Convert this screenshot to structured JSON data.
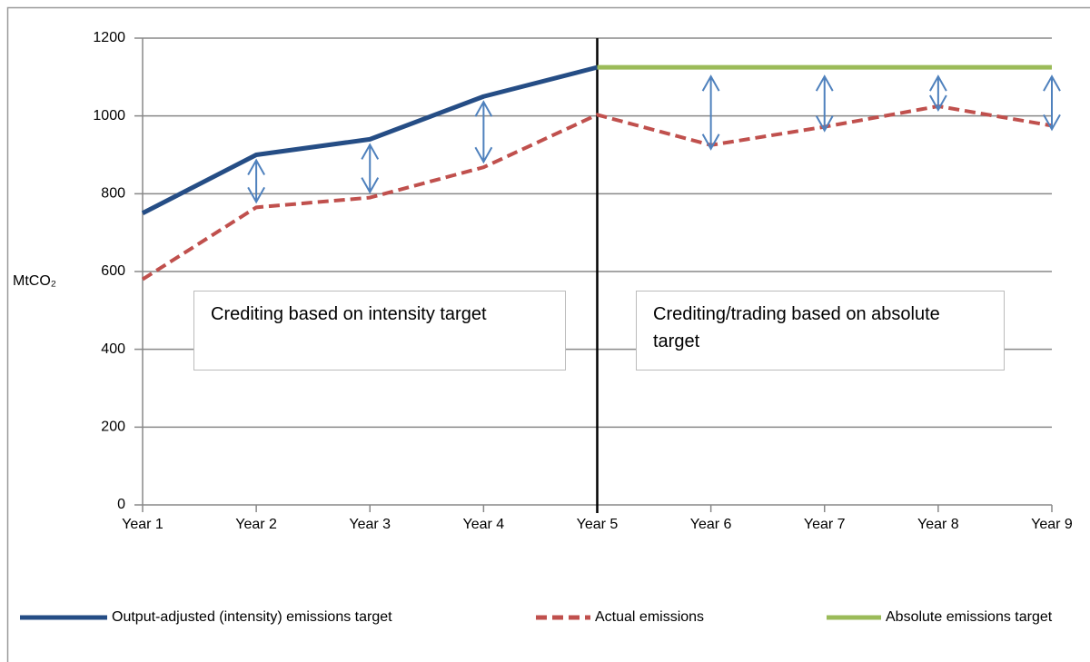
{
  "chart_data": {
    "type": "line",
    "categories": [
      "Year 1",
      "Year 2",
      "Year 3",
      "Year 4",
      "Year 5",
      "Year 6",
      "Year 7",
      "Year 8",
      "Year 9"
    ],
    "series": [
      {
        "name": "Output-adjusted (intensity) emissions target",
        "color": "#254d85",
        "style": "solid",
        "values": [
          750,
          900,
          940,
          1050,
          1125,
          null,
          null,
          null,
          null
        ]
      },
      {
        "name": "Actual emissions",
        "color": "#c0504d",
        "style": "dashed",
        "values": [
          580,
          765,
          790,
          868,
          1003,
          925,
          972,
          1025,
          975
        ]
      },
      {
        "name": "Absolute emissions target",
        "color": "#9bbb59",
        "style": "solid",
        "values": [
          null,
          null,
          null,
          null,
          1125,
          1125,
          1125,
          1125,
          1125
        ]
      }
    ],
    "ylabel": "MtCO₂",
    "ylim": [
      0,
      1200
    ],
    "yticks": [
      0,
      200,
      400,
      600,
      800,
      1000,
      1200
    ],
    "grid": true,
    "legend": "bottom",
    "annotations": [
      "Crediting based on intensity target",
      "Crediting/trading  based on absolute target"
    ]
  }
}
